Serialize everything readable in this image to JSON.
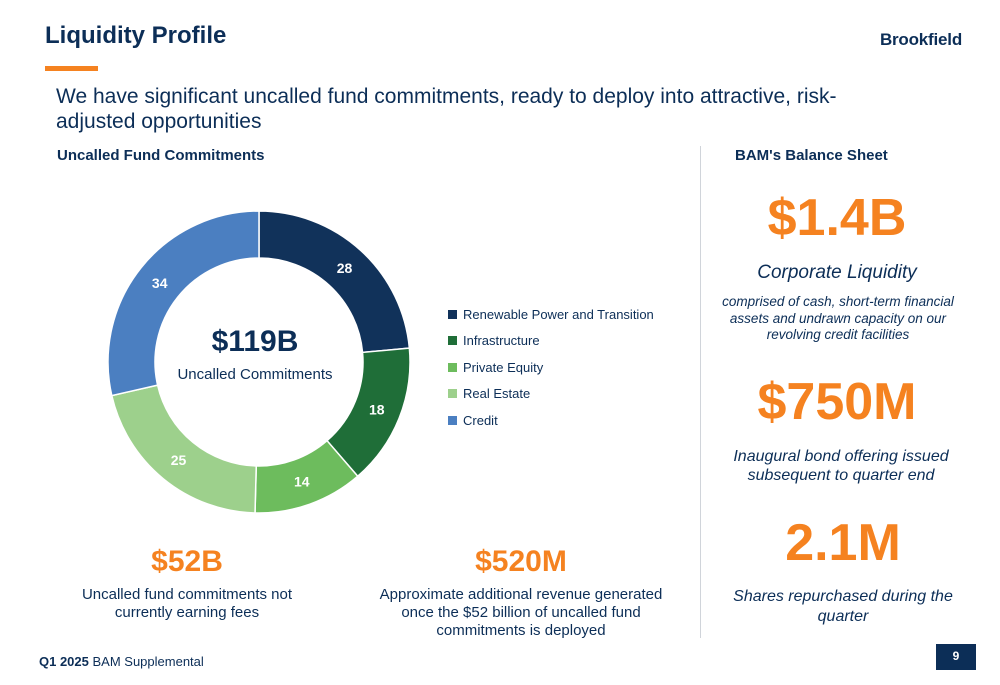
{
  "header": {
    "title": "Liquidity Profile",
    "logo_text": "Brookfield",
    "subtitle": "We have significant uncalled fund commitments, ready to deploy into attractive, risk-adjusted opportunities"
  },
  "left_section": {
    "heading": "Uncalled Fund Commitments",
    "center_total": "$119B",
    "center_label": "Uncalled Commitments"
  },
  "right_section": {
    "heading": "BAM's Balance Sheet",
    "stats": [
      {
        "value": "$1.4B",
        "label": "Corporate Liquidity",
        "note": "comprised of cash, short-term financial assets and undrawn capacity on our revolving credit facilities"
      },
      {
        "value": "$750M",
        "label": "Inaugural bond offering issued subsequent to quarter end"
      },
      {
        "value": "2.1M",
        "label": "Shares repurchased during the quarter"
      }
    ]
  },
  "bottom_stats": [
    {
      "value": "$52B",
      "label": "Uncalled fund commitments not currently earning fees"
    },
    {
      "value": "$520M",
      "label": "Approximate additional revenue generated once the $52 billion of uncalled fund commitments is deployed"
    }
  ],
  "footer": {
    "period": "Q1 2025",
    "doc": "BAM Supplemental",
    "page": "9"
  },
  "colors": {
    "navy": "#0c2e57",
    "accent": "#f58220"
  },
  "chart_data": {
    "type": "pie",
    "title": "",
    "categories": [
      "Renewable Power and Transition",
      "Infrastructure",
      "Private Equity",
      "Real Estate",
      "Credit"
    ],
    "values": [
      28,
      18,
      14,
      25,
      34
    ],
    "labels": [
      "28",
      "18",
      "14",
      "25",
      "34"
    ],
    "colors": [
      "#11325a",
      "#1f6e38",
      "#6dbc5d",
      "#9dd08c",
      "#4b7fc1"
    ],
    "donut": true,
    "legend_position": "right"
  }
}
